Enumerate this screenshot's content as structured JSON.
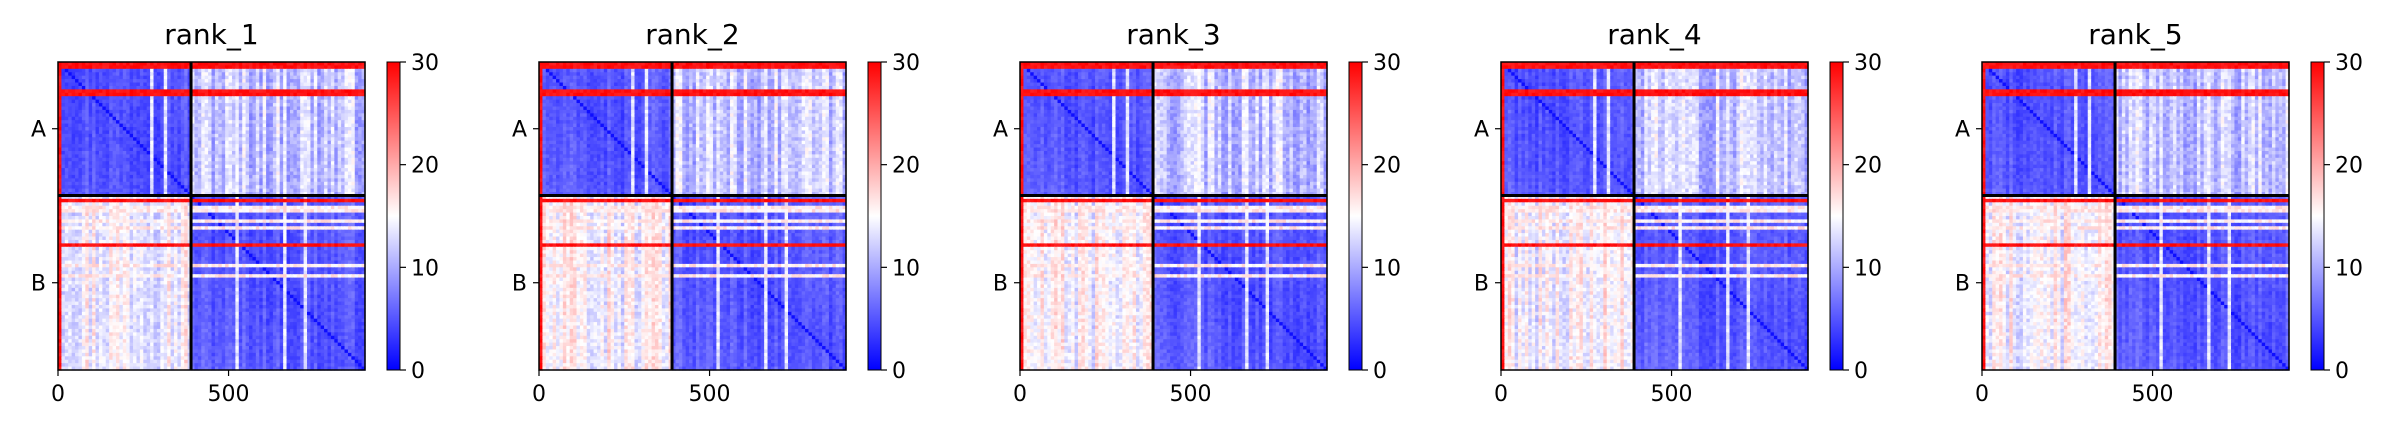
{
  "chart_data": [
    {
      "type": "heatmap",
      "title": "rank_1",
      "chains": [
        "A",
        "B"
      ],
      "chain_lengths": [
        390,
        510
      ],
      "x_ticks": [
        0,
        500
      ],
      "xlim": [
        0,
        900
      ],
      "colorbar": {
        "min": 0,
        "max": 30,
        "ticks": [
          0,
          10,
          20,
          30
        ]
      },
      "colormap": [
        "#0000ff",
        "#ffffff",
        "#ff0000"
      ]
    },
    {
      "type": "heatmap",
      "title": "rank_2",
      "chains": [
        "A",
        "B"
      ],
      "chain_lengths": [
        390,
        510
      ],
      "x_ticks": [
        0,
        500
      ],
      "xlim": [
        0,
        900
      ],
      "colorbar": {
        "min": 0,
        "max": 30,
        "ticks": [
          0,
          10,
          20,
          30
        ]
      },
      "colormap": [
        "#0000ff",
        "#ffffff",
        "#ff0000"
      ]
    },
    {
      "type": "heatmap",
      "title": "rank_3",
      "chains": [
        "A",
        "B"
      ],
      "chain_lengths": [
        390,
        510
      ],
      "x_ticks": [
        0,
        500
      ],
      "xlim": [
        0,
        900
      ],
      "colorbar": {
        "min": 0,
        "max": 30,
        "ticks": [
          0,
          10,
          20,
          30
        ]
      },
      "colormap": [
        "#0000ff",
        "#ffffff",
        "#ff0000"
      ]
    },
    {
      "type": "heatmap",
      "title": "rank_4",
      "chains": [
        "A",
        "B"
      ],
      "chain_lengths": [
        390,
        510
      ],
      "x_ticks": [
        0,
        500
      ],
      "xlim": [
        0,
        900
      ],
      "colorbar": {
        "min": 0,
        "max": 30,
        "ticks": [
          0,
          10,
          20,
          30
        ]
      },
      "colormap": [
        "#0000ff",
        "#ffffff",
        "#ff0000"
      ]
    },
    {
      "type": "heatmap",
      "title": "rank_5",
      "chains": [
        "A",
        "B"
      ],
      "chain_lengths": [
        390,
        510
      ],
      "x_ticks": [
        0,
        500
      ],
      "xlim": [
        0,
        900
      ],
      "colorbar": {
        "min": 0,
        "max": 30,
        "ticks": [
          0,
          10,
          20,
          30
        ]
      },
      "colormap": [
        "#0000ff",
        "#ffffff",
        "#ff0000"
      ]
    }
  ]
}
